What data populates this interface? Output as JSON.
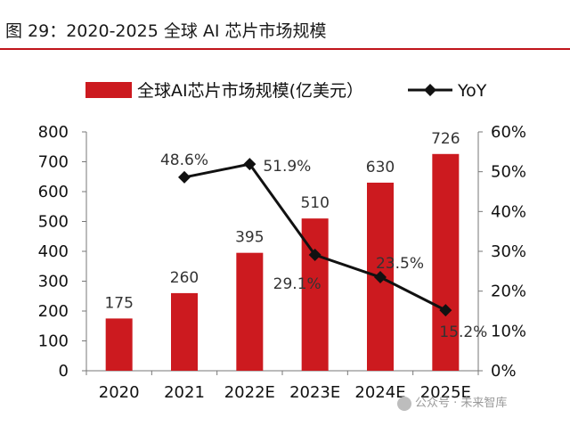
{
  "figure": {
    "title": "图 29：2020-2025 全球 AI 芯片市场规模"
  },
  "watermark": {
    "text": "公众号 · 未来智库",
    "icon": "wechat-icon"
  },
  "colors": {
    "bar": "#cc1a1f",
    "line": "#111111",
    "rule": "#c0141b"
  },
  "chart_data": {
    "type": "bar",
    "categories": [
      "2020",
      "2021",
      "2022E",
      "2023E",
      "2024E",
      "2025E"
    ],
    "series": [
      {
        "name": "全球AI芯片市场规模(亿美元）",
        "type": "bar",
        "axis": "left",
        "values": [
          175,
          260,
          395,
          510,
          630,
          726
        ],
        "labels": [
          "175",
          "260",
          "395",
          "510",
          "630",
          "726"
        ]
      },
      {
        "name": "YoY",
        "type": "line",
        "axis": "right",
        "values": [
          null,
          48.6,
          51.9,
          29.1,
          23.5,
          15.2
        ],
        "labels": [
          "",
          "48.6%",
          "51.9%",
          "29.1%",
          "23.5%",
          "15.2%"
        ]
      }
    ],
    "ylim_left": [
      0,
      800
    ],
    "yticks_left": [
      "0",
      "100",
      "200",
      "300",
      "400",
      "500",
      "600",
      "700",
      "800"
    ],
    "ylim_right": [
      0,
      60
    ],
    "yticks_right": [
      "0%",
      "10%",
      "20%",
      "30%",
      "40%",
      "50%",
      "60%"
    ],
    "xlabel": "",
    "ylabel": "",
    "legend": "top",
    "grid": false
  }
}
